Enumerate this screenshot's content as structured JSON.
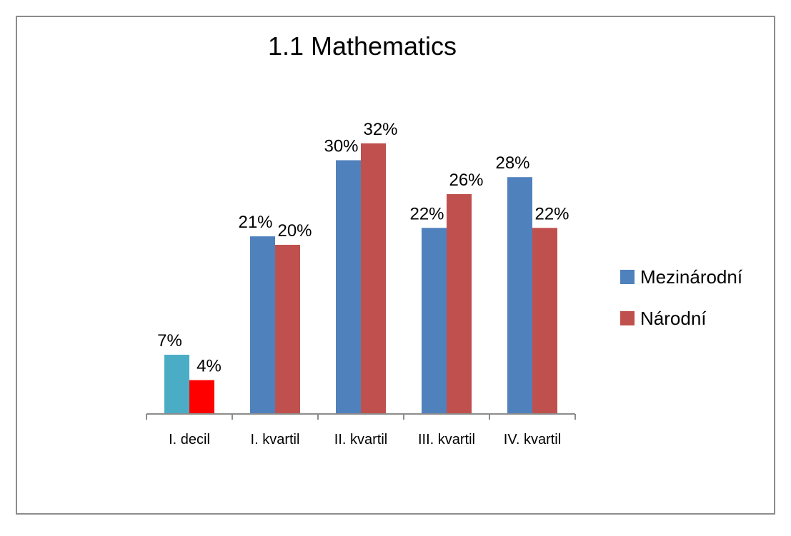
{
  "chart_data": {
    "type": "bar",
    "title": "1.1 Mathematics",
    "categories": [
      "I. decil",
      "I. kvartil",
      "II. kvartil",
      "III. kvartil",
      "IV. kvartil"
    ],
    "series": [
      {
        "name": "Mezinárodní",
        "values": [
          7,
          21,
          30,
          22,
          28
        ],
        "labels": [
          "7%",
          "21%",
          "30%",
          "22%",
          "28%"
        ],
        "color": "#4f81bd"
      },
      {
        "name": "Národní",
        "values": [
          4,
          20,
          32,
          26,
          22
        ],
        "labels": [
          "4%",
          "20%",
          "32%",
          "26%",
          "22%"
        ],
        "color": "#c0504d"
      }
    ],
    "highlight_colors": {
      "first_category": [
        "#4bacc6",
        "#ff0000"
      ]
    },
    "ylim": [
      0,
      35
    ],
    "grid": false,
    "legend": "right",
    "xlabel": "",
    "ylabel": ""
  }
}
